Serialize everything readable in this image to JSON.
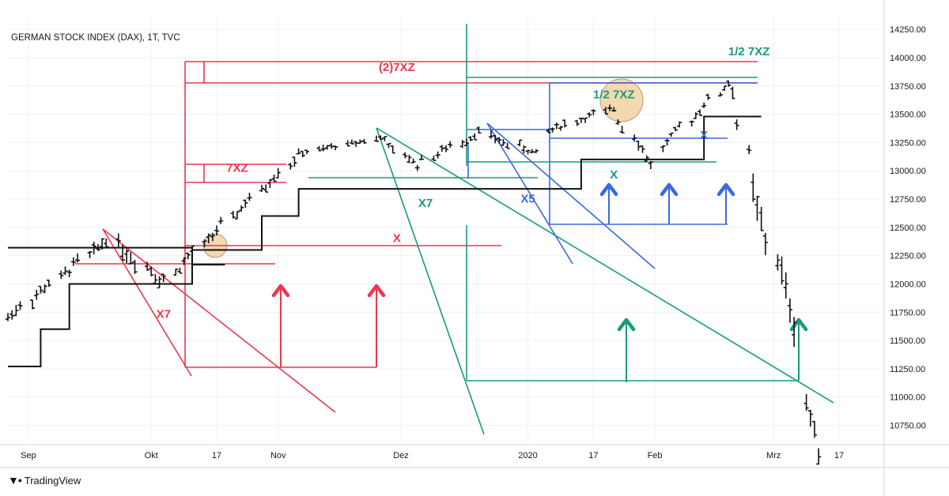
{
  "header": {
    "title": "GERMAN STOCK INDEX (DAX), 1T, TVC"
  },
  "footer": {
    "brand": "TradingView",
    "brand_icon": "tradingview-logo-icon"
  },
  "colors": {
    "price": "#111111",
    "red": "#e8384f",
    "green": "#1a9a7a",
    "blue": "#3b68e0",
    "grid": "#eef0f3",
    "axis": "#d1d4dc",
    "highlight": "#f3d8b0"
  },
  "chart_data": {
    "type": "ohlc",
    "ylim": [
      10600,
      14300
    ],
    "y_ticks": [
      14250,
      14000,
      13750,
      13500,
      13250,
      13000,
      12750,
      12500,
      12250,
      12000,
      11750,
      11500,
      11250,
      11000,
      10750
    ],
    "y_tick_labels": [
      "14250.00",
      "14000.00",
      "13750.00",
      "13500.00",
      "13250.00",
      "13000.00",
      "12750.00",
      "12500.00",
      "12250.00",
      "12000.00",
      "11750.00",
      "11500.00",
      "11250.00",
      "11000.00",
      "10750.00"
    ],
    "xlim": [
      "2019-08-27",
      "2020-03-28"
    ],
    "x_ticks": [
      {
        "date": "2019-09-01",
        "label": "Sep"
      },
      {
        "date": "2019-10-01",
        "label": "Okt"
      },
      {
        "date": "2019-10-17",
        "label": "17"
      },
      {
        "date": "2019-11-01",
        "label": "Nov"
      },
      {
        "date": "2019-12-01",
        "label": "Dez"
      },
      {
        "date": "2020-01-01",
        "label": "2020"
      },
      {
        "date": "2020-01-17",
        "label": "17"
      },
      {
        "date": "2020-02-01",
        "label": "Feb"
      },
      {
        "date": "2020-03-01",
        "label": "Mrz"
      },
      {
        "date": "2020-03-17",
        "label": "17"
      }
    ],
    "price_segments": [
      {
        "start": "2019-08-27",
        "end": "2019-09-22",
        "from": 11700,
        "to": 12400,
        "vol": 70
      },
      {
        "start": "2019-09-23",
        "end": "2019-10-03",
        "from": 12350,
        "to": 12050,
        "vol": 90
      },
      {
        "start": "2019-10-04",
        "end": "2019-11-05",
        "from": 12050,
        "to": 13100,
        "vol": 60
      },
      {
        "start": "2019-11-06",
        "end": "2019-11-27",
        "from": 13150,
        "to": 13300,
        "vol": 40
      },
      {
        "start": "2019-11-28",
        "end": "2019-12-05",
        "from": 13200,
        "to": 13050,
        "vol": 50
      },
      {
        "start": "2019-12-06",
        "end": "2019-12-20",
        "from": 13100,
        "to": 13350,
        "vol": 50
      },
      {
        "start": "2019-12-21",
        "end": "2020-01-03",
        "from": 13300,
        "to": 13150,
        "vol": 50
      },
      {
        "start": "2020-01-04",
        "end": "2020-01-22",
        "from": 13350,
        "to": 13550,
        "vol": 45
      },
      {
        "start": "2020-01-23",
        "end": "2020-01-31",
        "from": 13450,
        "to": 13050,
        "vol": 60
      },
      {
        "start": "2020-02-01",
        "end": "2020-02-19",
        "from": 13200,
        "to": 13780,
        "vol": 45
      },
      {
        "start": "2020-02-20",
        "end": "2020-02-24",
        "from": 13700,
        "to": 13150,
        "vol": 90
      },
      {
        "start": "2020-02-25",
        "end": "2020-03-06",
        "from": 12800,
        "to": 11650,
        "vol": 170
      },
      {
        "start": "2020-03-07",
        "end": "2020-03-12",
        "from": 10950,
        "to": 10550,
        "vol": 130
      }
    ],
    "stepped_lines": [
      {
        "color": "black",
        "points": [
          [
            "2019-08-27",
            11270
          ],
          [
            "2019-09-04",
            11270
          ],
          [
            "2019-09-04",
            11600
          ],
          [
            "2019-09-11",
            11600
          ],
          [
            "2019-09-11",
            12000
          ],
          [
            "2019-10-11",
            12000
          ],
          [
            "2019-10-11",
            12300
          ],
          [
            "2019-10-28",
            12300
          ],
          [
            "2019-10-28",
            12600
          ],
          [
            "2019-11-06",
            12600
          ],
          [
            "2019-11-06",
            12840
          ],
          [
            "2020-01-14",
            12840
          ],
          [
            "2020-01-14",
            13100
          ],
          [
            "2020-02-13",
            13100
          ],
          [
            "2020-02-13",
            13480
          ],
          [
            "2020-02-27",
            13480
          ]
        ]
      },
      {
        "color": "black",
        "points": [
          [
            "2019-08-27",
            12320
          ],
          [
            "2019-10-11",
            12320
          ],
          [
            "2019-10-11",
            12170
          ],
          [
            "2019-10-19",
            12170
          ]
        ]
      }
    ],
    "annotations": [
      {
        "text": "(2)7XZ",
        "color": "red",
        "date": "2019-11-30",
        "value": 13880
      },
      {
        "text": "7XZ",
        "color": "red",
        "date": "2019-10-22",
        "value": 12990
      },
      {
        "text": "X",
        "color": "red",
        "date": "2019-11-30",
        "value": 12370
      },
      {
        "text": "X7",
        "color": "red",
        "date": "2019-10-04",
        "value": 11700
      },
      {
        "text": "1/2 7XZ",
        "color": "green",
        "date": "2020-02-24",
        "value": 14020
      },
      {
        "text": "1/2 7XZ",
        "color": "green",
        "date": "2020-01-22",
        "value": 13640
      },
      {
        "text": "X7",
        "color": "green",
        "date": "2019-12-07",
        "value": 12680
      },
      {
        "text": "X",
        "color": "green",
        "date": "2020-01-22",
        "value": 12930
      },
      {
        "text": "X5",
        "color": "blue",
        "date": "2020-01-01",
        "value": 12720
      },
      {
        "text": "X",
        "color": "blue",
        "date": "2020-02-13",
        "value": 13280
      }
    ]
  }
}
